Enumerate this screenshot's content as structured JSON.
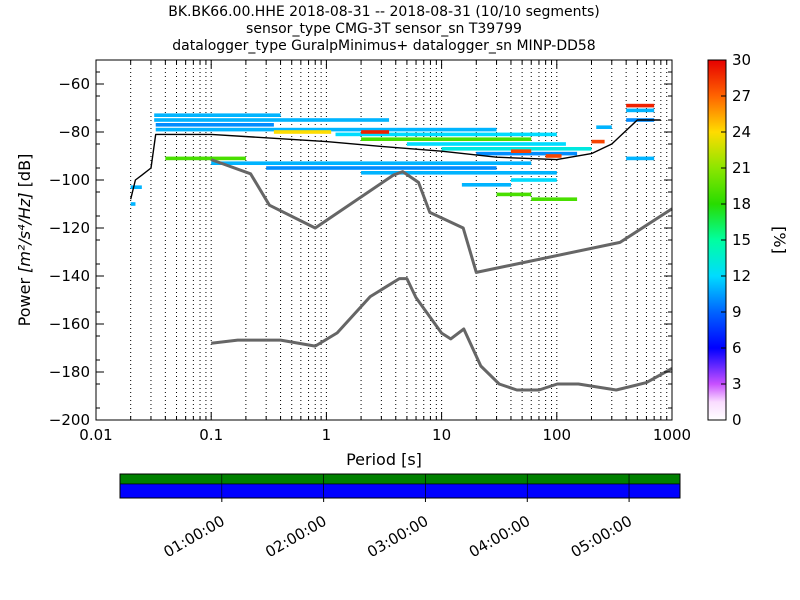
{
  "chart_data": [
    {
      "type": "heatmap",
      "title_lines": [
        "BK.BK66.00.HHE   2018-08-31 -- 2018-08-31  (10/10 segments)",
        "sensor_type CMG-3T sensor_sn T39799",
        "datalogger_type GuralpMinimus+ datalogger_sn MINP-DD58"
      ],
      "xlabel": "Period [s]",
      "ylabel_prefix": "Power ",
      "ylabel_math": "[m²/s⁴/Hz]",
      "ylabel_suffix": " [dB]",
      "x_scale": "log",
      "xlim": [
        0.01,
        1000
      ],
      "ylim": [
        -200,
        -50
      ],
      "x_ticks": [
        0.01,
        0.1,
        1,
        10,
        100,
        1000
      ],
      "x_tick_labels": [
        "0.01",
        "0.1",
        "1",
        "10",
        "100",
        "1000"
      ],
      "y_ticks": [
        -200,
        -180,
        -160,
        -140,
        -120,
        -100,
        -80,
        -60
      ],
      "y_tick_labels": [
        "−200",
        "−180",
        "−160",
        "−140",
        "−120",
        "−100",
        "−80",
        "−60"
      ],
      "grid": "vertical dotted",
      "colorbar": {
        "label": "[%]",
        "range": [
          0,
          30
        ],
        "ticks": [
          0,
          3,
          6,
          9,
          12,
          15,
          18,
          21,
          24,
          27,
          30
        ]
      },
      "noise_model_high": {
        "x": [
          0.1,
          0.22,
          0.32,
          0.8,
          3.8,
          4.6,
          6.3,
          7.9,
          15.4,
          20,
          354,
          1000
        ],
        "y": [
          -91.5,
          -97.4,
          -110.5,
          -120,
          -98,
          -96.5,
          -101,
          -113.5,
          -120,
          -138.5,
          -126,
          -112
        ]
      },
      "noise_model_low": {
        "x": [
          0.1,
          0.17,
          0.4,
          0.8,
          1.24,
          2.4,
          4.3,
          5,
          6,
          10,
          12,
          15.6,
          21.9,
          31.6,
          45,
          70,
          101,
          154,
          328,
          600,
          1000
        ],
        "y": [
          -168,
          -166.7,
          -166.7,
          -169.2,
          -163.7,
          -148.6,
          -141.1,
          -141.1,
          -149,
          -163.8,
          -166.2,
          -162.1,
          -177.5,
          -185,
          -187.5,
          -187.5,
          -185,
          -185,
          -187.5,
          -184.4,
          -178.5
        ]
      },
      "mode_line": {
        "x": [
          0.02,
          0.022,
          0.025,
          0.03,
          0.033,
          0.1,
          1,
          3,
          10,
          30,
          100,
          200,
          300,
          350,
          500,
          800
        ],
        "y": [
          -108,
          -100,
          -98,
          -95,
          -81,
          -81,
          -84,
          -86,
          -88,
          -90.5,
          -91.5,
          -89,
          -85,
          -82,
          -75,
          -75
        ]
      },
      "density_rows": [
        {
          "y": -73,
          "x0": 0.032,
          "x1": 0.4,
          "pct": 11
        },
        {
          "y": -75,
          "x0": 0.032,
          "x1": 3.5,
          "pct": 11
        },
        {
          "y": -77,
          "x0": 0.033,
          "x1": 0.35,
          "pct": 10
        },
        {
          "y": -79,
          "x0": 0.033,
          "x1": 30,
          "pct": 11
        },
        {
          "y": -80,
          "x0": 0.35,
          "x1": 1.1,
          "pct": 24
        },
        {
          "y": -81,
          "x0": 1.2,
          "x1": 100,
          "pct": 12
        },
        {
          "y": -83,
          "x0": 2,
          "x1": 60,
          "pct": 19
        },
        {
          "y": -85,
          "x0": 5,
          "x1": 120,
          "pct": 12
        },
        {
          "y": -87,
          "x0": 10,
          "x1": 200,
          "pct": 13
        },
        {
          "y": -89,
          "x0": 20,
          "x1": 150,
          "pct": 10
        },
        {
          "y": -91,
          "x0": 0.04,
          "x1": 0.2,
          "pct": 19
        },
        {
          "y": -93,
          "x0": 0.1,
          "x1": 60,
          "pct": 11
        },
        {
          "y": -95,
          "x0": 0.3,
          "x1": 30,
          "pct": 10
        },
        {
          "y": -97,
          "x0": 2,
          "x1": 100,
          "pct": 11
        },
        {
          "y": -100,
          "x0": 40,
          "x1": 100,
          "pct": 12
        },
        {
          "y": -102,
          "x0": 15,
          "x1": 40,
          "pct": 11
        },
        {
          "y": -106,
          "x0": 30,
          "x1": 60,
          "pct": 19
        },
        {
          "y": -108,
          "x0": 60,
          "x1": 150,
          "pct": 19
        },
        {
          "y": -103,
          "x0": 0.02,
          "x1": 0.025,
          "pct": 11
        },
        {
          "y": -110,
          "x0": 0.02,
          "x1": 0.022,
          "pct": 11
        },
        {
          "y": -78,
          "x0": 220,
          "x1": 300,
          "pct": 11
        },
        {
          "y": -84,
          "x0": 200,
          "x1": 260,
          "pct": 28
        },
        {
          "y": -71,
          "x0": 400,
          "x1": 700,
          "pct": 11
        },
        {
          "y": -69,
          "x0": 400,
          "x1": 700,
          "pct": 29
        },
        {
          "y": -75,
          "x0": 400,
          "x1": 700,
          "pct": 10
        },
        {
          "y": -91,
          "x0": 400,
          "x1": 700,
          "pct": 11
        },
        {
          "y": -80,
          "x0": 2,
          "x1": 3.5,
          "pct": 29
        },
        {
          "y": -88,
          "x0": 40,
          "x1": 60,
          "pct": 28
        },
        {
          "y": -90,
          "x0": 80,
          "x1": 110,
          "pct": 28
        }
      ]
    },
    {
      "type": "bar",
      "description": "data availability",
      "x_tick_labels": [
        "01:00:00",
        "02:00:00",
        "03:00:00",
        "04:00:00",
        "05:00:00"
      ],
      "x_tick_positions_hours": [
        1,
        2,
        3,
        4,
        5
      ],
      "xlim_hours": [
        0,
        5.5
      ],
      "segments_hours": [
        [
          0,
          1
        ],
        [
          1,
          2
        ],
        [
          2,
          3
        ],
        [
          3,
          4
        ],
        [
          4,
          5
        ],
        [
          5,
          5.5
        ]
      ],
      "colors": {
        "data": "#0000ff",
        "psd": "#008000"
      }
    }
  ]
}
